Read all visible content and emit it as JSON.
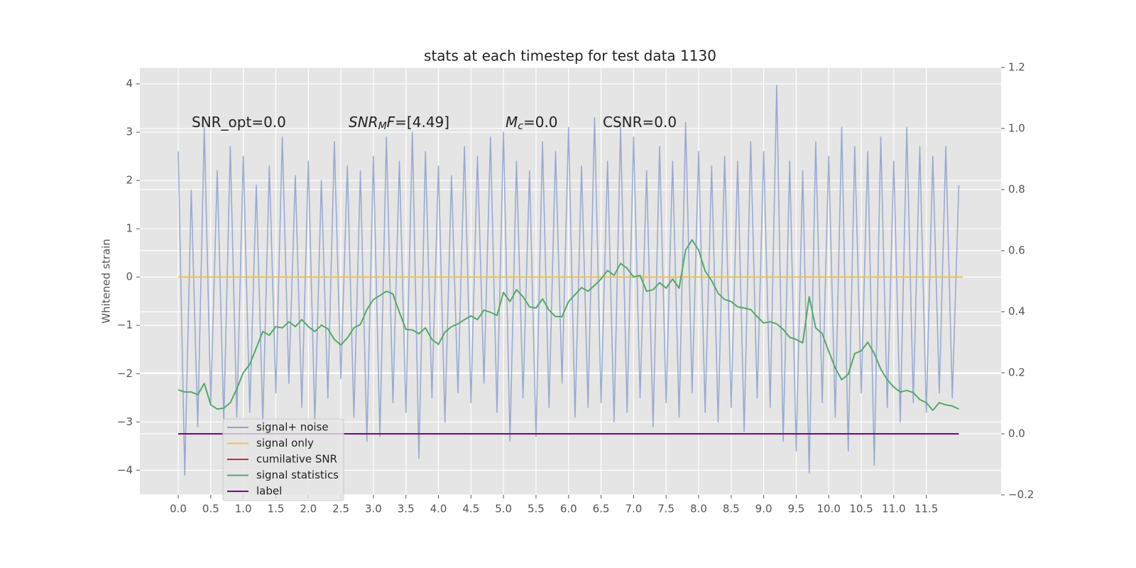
{
  "chart_data": {
    "type": "line",
    "title": "stats at each timestep for test data 1130",
    "ylabel": "Whitened strain",
    "xlim": [
      -0.59,
      12.65
    ],
    "ylim": [
      -4.51,
      4.34
    ],
    "y2lim": [
      -0.2,
      1.2
    ],
    "grid": true,
    "legend": "lower left",
    "xticks": [
      {
        "value": 0,
        "label": "0.0"
      },
      0.5,
      {
        "value": 1,
        "label": "1.0"
      },
      1.5,
      {
        "value": 2,
        "label": "2.0"
      },
      2.5,
      {
        "value": 3,
        "label": "3.0"
      },
      3.5,
      {
        "value": 4,
        "label": "4.0"
      },
      4.5,
      {
        "value": 5,
        "label": "5.0"
      },
      5.5,
      {
        "value": 6,
        "label": "6.0"
      },
      6.5,
      {
        "value": 7,
        "label": "7.0"
      },
      7.5,
      {
        "value": 8,
        "label": "8.0"
      },
      8.5,
      {
        "value": 9,
        "label": "9.0"
      },
      9.5,
      {
        "value": 10,
        "label": "10.0"
      },
      10.5,
      {
        "value": 11,
        "label": "11.0"
      },
      11.5
    ],
    "yticks": [
      {
        "value": -4,
        "label": "−4"
      },
      {
        "value": -3,
        "label": "−3"
      },
      {
        "value": -2,
        "label": "−2"
      },
      {
        "value": -1,
        "label": "−1"
      },
      0,
      1,
      2,
      3,
      4
    ],
    "y2ticks": [
      {
        "value": -0.2,
        "label": "−0.2"
      },
      {
        "value": 0,
        "label": "0.0"
      },
      0.2,
      0.4,
      0.6,
      0.8,
      {
        "value": 1,
        "label": "1.0"
      },
      1.2
    ],
    "annotations": [
      {
        "text": "SNR_opt=0.0"
      },
      {
        "base": "SNR",
        "sub": "M",
        "tail": "F",
        "text": "=[4.49]"
      },
      {
        "base": "M",
        "sub": "c",
        "text": "=0.0"
      },
      {
        "text": "CSNR=0.0"
      }
    ],
    "x": [
      0,
      0.1,
      0.2,
      0.3,
      0.4,
      0.5,
      0.6,
      0.7,
      0.8,
      0.9,
      1,
      1.1,
      1.2,
      1.3,
      1.4,
      1.5,
      1.6,
      1.7,
      1.8,
      1.9,
      2,
      2.1,
      2.2,
      2.3,
      2.4,
      2.5,
      2.6,
      2.7,
      2.8,
      2.9,
      3,
      3.1,
      3.2,
      3.3,
      3.4,
      3.5,
      3.6,
      3.7,
      3.8,
      3.9,
      4,
      4.1,
      4.2,
      4.3,
      4.4,
      4.5,
      4.6,
      4.7,
      4.8,
      4.9,
      5,
      5.1,
      5.2,
      5.3,
      5.4,
      5.5,
      5.6,
      5.7,
      5.8,
      5.9,
      6,
      6.1,
      6.2,
      6.3,
      6.4,
      6.5,
      6.6,
      6.7,
      6.8,
      6.9,
      7,
      7.1,
      7.2,
      7.3,
      7.4,
      7.5,
      7.6,
      7.7,
      7.8,
      7.9,
      8,
      8.1,
      8.2,
      8.3,
      8.4,
      8.5,
      8.6,
      8.7,
      8.8,
      8.9,
      9,
      9.1,
      9.2,
      9.3,
      9.4,
      9.5,
      9.6,
      9.7,
      9.8,
      9.9,
      10,
      10.1,
      10.2,
      10.3,
      10.4,
      10.5,
      10.6,
      10.7,
      10.8,
      10.9,
      11,
      11.1,
      11.2,
      11.3,
      11.4,
      11.5,
      11.6,
      11.7,
      11.8,
      11.9,
      12
    ],
    "series": [
      {
        "name": "signal+ noise",
        "color": "#8da0cb",
        "axis": "y",
        "values": [
          2.6,
          -4.1,
          1.8,
          -3.1,
          3.1,
          -2.6,
          2.2,
          -3.0,
          2.7,
          -2.9,
          2.5,
          -2.8,
          1.9,
          -3.0,
          2.3,
          -2.4,
          2.9,
          -2.2,
          2.1,
          -2.7,
          2.4,
          -3.0,
          2.0,
          -2.5,
          2.8,
          -2.1,
          2.3,
          -2.9,
          2.2,
          -3.4,
          2.5,
          -3.3,
          2.9,
          -2.6,
          2.4,
          -2.8,
          3.0,
          -3.75,
          2.6,
          -2.5,
          2.3,
          -3.0,
          2.1,
          -2.4,
          2.7,
          -2.6,
          2.5,
          -2.2,
          2.9,
          -2.8,
          3.0,
          -3.4,
          2.4,
          -2.5,
          2.2,
          -3.3,
          2.8,
          -2.7,
          2.6,
          -2.2,
          3.1,
          -2.9,
          2.3,
          -2.7,
          3.3,
          -2.6,
          2.4,
          -3.0,
          3.1,
          -2.8,
          2.9,
          -2.5,
          2.2,
          -3.1,
          2.7,
          -2.6,
          2.4,
          -2.9,
          3.2,
          -2.4,
          2.6,
          -2.8,
          2.3,
          -3.0,
          2.5,
          -2.7,
          2.4,
          -3.2,
          2.8,
          -2.5,
          2.6,
          -2.7,
          3.97,
          -3.4,
          2.4,
          -3.6,
          2.2,
          -4.06,
          2.8,
          -2.6,
          2.5,
          -2.9,
          3.1,
          -3.6,
          2.7,
          -2.4,
          2.6,
          -3.9,
          2.9,
          -2.7,
          2.4,
          -3.0,
          3.1,
          -2.6,
          2.7,
          -2.8,
          2.5,
          -2.4,
          2.7,
          -2.5,
          1.9
        ]
      },
      {
        "name": "signal only",
        "color": "#f2c055",
        "axis": "y",
        "x": [
          0,
          12.06
        ],
        "values": [
          0,
          0
        ]
      },
      {
        "name": "cumilative SNR",
        "color": "#d62728",
        "axis": "y2",
        "x": [
          0,
          12
        ],
        "values": [
          0,
          0
        ]
      },
      {
        "name": "signal statistics",
        "color": "#55a868",
        "axis": "y2",
        "values": [
          0.144,
          0.137,
          0.137,
          0.128,
          0.165,
          0.095,
          0.081,
          0.084,
          0.102,
          0.147,
          0.2,
          0.228,
          0.281,
          0.335,
          0.323,
          0.351,
          0.347,
          0.367,
          0.351,
          0.374,
          0.351,
          0.335,
          0.356,
          0.344,
          0.309,
          0.291,
          0.314,
          0.347,
          0.358,
          0.407,
          0.44,
          0.453,
          0.467,
          0.458,
          0.398,
          0.342,
          0.34,
          0.328,
          0.347,
          0.309,
          0.293,
          0.333,
          0.351,
          0.36,
          0.374,
          0.386,
          0.374,
          0.405,
          0.398,
          0.388,
          0.463,
          0.433,
          0.472,
          0.449,
          0.416,
          0.412,
          0.442,
          0.405,
          0.384,
          0.384,
          0.433,
          0.456,
          0.479,
          0.467,
          0.486,
          0.507,
          0.535,
          0.519,
          0.558,
          0.542,
          0.514,
          0.519,
          0.467,
          0.472,
          0.495,
          0.477,
          0.507,
          0.477,
          0.602,
          0.635,
          0.602,
          0.533,
          0.502,
          0.46,
          0.44,
          0.433,
          0.416,
          0.412,
          0.407,
          0.384,
          0.363,
          0.367,
          0.36,
          0.342,
          0.316,
          0.309,
          0.298,
          0.449,
          0.347,
          0.328,
          0.27,
          0.216,
          0.177,
          0.195,
          0.263,
          0.272,
          0.3,
          0.263,
          0.212,
          0.177,
          0.153,
          0.137,
          0.142,
          0.135,
          0.112,
          0.102,
          0.077,
          0.102,
          0.095,
          0.091,
          0.081
        ]
      },
      {
        "name": "label",
        "color": "#800080",
        "axis": "y2",
        "x": [
          0,
          12
        ],
        "values": [
          0,
          0
        ]
      }
    ]
  }
}
